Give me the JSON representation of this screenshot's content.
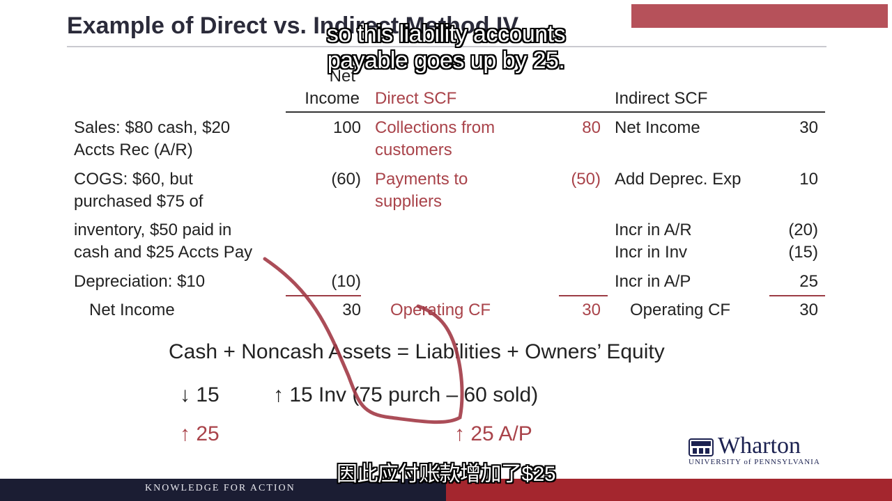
{
  "slide": {
    "title": "Example of Direct vs. Indirect Method IV"
  },
  "captions": {
    "line1": "so this liability accounts",
    "line2": "payable goes up by 25.",
    "chinese": "因此应付账款增加了$25"
  },
  "table": {
    "headers": {
      "net_income_1": "Net",
      "net_income_2": "Income",
      "direct": "Direct SCF",
      "indirect": "Indirect SCF"
    },
    "rows": {
      "sales_1": "Sales: $80 cash, $20",
      "sales_2": "Accts Rec (A/R)",
      "sales_ni": "100",
      "collections_1": "Collections from",
      "collections_2": "customers",
      "collections_val": "80",
      "net_income_label": "Net Income",
      "net_income_val": "30",
      "cogs_1": "COGS: $60, but",
      "cogs_2": "purchased $75 of",
      "cogs_3": "inventory, $50 paid in",
      "cogs_4": "cash and $25 Accts Pay",
      "cogs_ni": "(60)",
      "payments_1": "Payments to",
      "payments_2": "suppliers",
      "payments_val": "(50)",
      "deprec_add_label": "Add Deprec. Exp",
      "deprec_add_val": "10",
      "incr_ar_label": "Incr in A/R",
      "incr_ar_val": "(20)",
      "incr_inv_label": "Incr in Inv",
      "incr_inv_val": "(15)",
      "depreciation": "Depreciation: $10",
      "depreciation_ni": "(10)",
      "incr_ap_label": "Incr in A/P",
      "incr_ap_val": "25",
      "total_ni_label": "Net Income",
      "total_ni_val": "30",
      "direct_ocf_label": "Operating CF",
      "direct_ocf_val": "30",
      "indirect_ocf_label": "Operating CF",
      "indirect_ocf_val": "30"
    }
  },
  "equation": {
    "text": "Cash + Noncash Assets = Liabilities + Owners’ Equity",
    "cash_down": "↓ 15",
    "inv_up": "↑ 15 Inv (75 purch – 60 sold)",
    "cash_up": "↑ 25",
    "ap_up": "↑ 25 A/P"
  },
  "branding": {
    "logo_word": "Wharton",
    "logo_sub": "UNIVERSITY of PENNSYLVANIA",
    "footer": "KNOWLEDGE FOR ACTION"
  },
  "colors": {
    "accent_red": "#a9434a",
    "footer_navy": "#1b1d33",
    "footer_red": "#a4262e",
    "title": "#2b2b3a"
  }
}
